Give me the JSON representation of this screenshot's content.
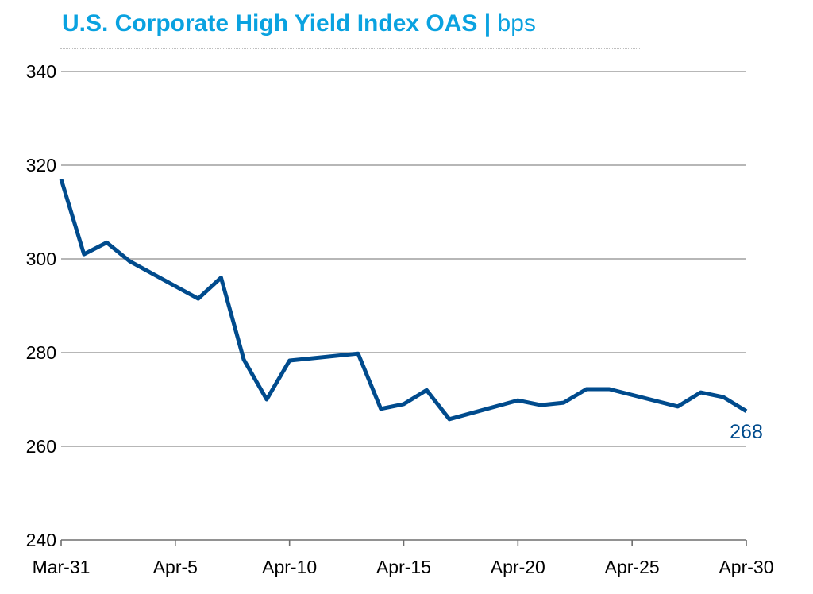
{
  "chart_data": {
    "type": "line",
    "title": "U.S. Corporate High Yield Index OAS",
    "title_separator": "|",
    "unit": "bps",
    "ylim": [
      240,
      340
    ],
    "yticks": [
      240,
      260,
      280,
      300,
      320,
      340
    ],
    "xlim": [
      "Mar-31",
      "Apr-30"
    ],
    "xtick_labels": [
      "Mar-31",
      "Apr-5",
      "Apr-10",
      "Apr-15",
      "Apr-20",
      "Apr-25",
      "Apr-30"
    ],
    "grid": true,
    "series": [
      {
        "color": "#004b8d",
        "x": [
          "Mar-31",
          "Apr-1",
          "Apr-2",
          "Apr-3",
          "Apr-6",
          "Apr-7",
          "Apr-8",
          "Apr-9",
          "Apr-10",
          "Apr-13",
          "Apr-14",
          "Apr-15",
          "Apr-16",
          "Apr-17",
          "Apr-20",
          "Apr-21",
          "Apr-22",
          "Apr-23",
          "Apr-24",
          "Apr-27",
          "Apr-28",
          "Apr-29",
          "Apr-30"
        ],
        "values": [
          317,
          301,
          303.5,
          299.5,
          291.5,
          296,
          278.5,
          270,
          278.3,
          279.8,
          268,
          269,
          272,
          265.8,
          269.8,
          268.8,
          269.3,
          272.2,
          272.2,
          268.5,
          271.5,
          270.5,
          267.5
        ],
        "end_label": "268"
      }
    ]
  }
}
